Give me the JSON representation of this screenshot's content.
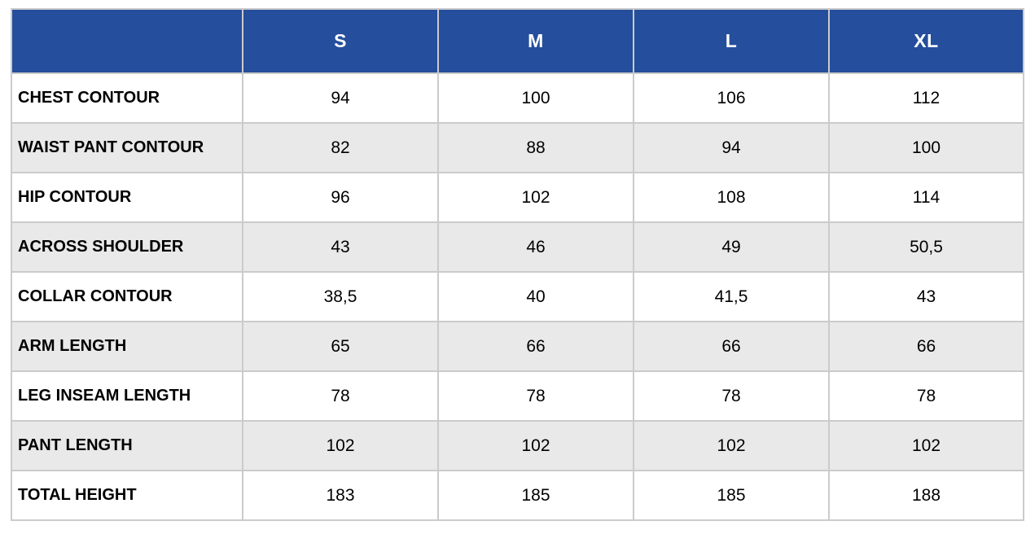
{
  "table": {
    "columns": [
      "",
      "S",
      "M",
      "L",
      "XL"
    ],
    "rows": [
      {
        "label": "CHEST CONTOUR",
        "values": [
          "94",
          "100",
          "106",
          "112"
        ]
      },
      {
        "label": "WAIST PANT CONTOUR",
        "values": [
          "82",
          "88",
          "94",
          "100"
        ]
      },
      {
        "label": "HIP CONTOUR",
        "values": [
          "96",
          "102",
          "108",
          "114"
        ]
      },
      {
        "label": "ACROSS SHOULDER",
        "values": [
          "43",
          "46",
          "49",
          "50,5"
        ]
      },
      {
        "label": "COLLAR CONTOUR",
        "values": [
          "38,5",
          "40",
          "41,5",
          "43"
        ]
      },
      {
        "label": "ARM LENGTH",
        "values": [
          "65",
          "66",
          "66",
          "66"
        ]
      },
      {
        "label": "LEG INSEAM LENGTH",
        "values": [
          "78",
          "78",
          "78",
          "78"
        ]
      },
      {
        "label": "PANT LENGTH",
        "values": [
          "102",
          "102",
          "102",
          "102"
        ]
      },
      {
        "label": "TOTAL HEIGHT",
        "values": [
          "183",
          "185",
          "185",
          "188"
        ]
      }
    ],
    "colors": {
      "header_bg": "#254e9c",
      "header_text": "#ffffff",
      "row_bg": "#ffffff",
      "row_alt_bg": "#e9e9e9",
      "border": "#cbcbcb",
      "cell_text": "#000000"
    }
  },
  "chart_data": {
    "type": "table",
    "columns": [
      "S",
      "M",
      "L",
      "XL"
    ],
    "rows": [
      {
        "label": "CHEST CONTOUR",
        "values": [
          94,
          100,
          106,
          112
        ]
      },
      {
        "label": "WAIST PANT CONTOUR",
        "values": [
          82,
          88,
          94,
          100
        ]
      },
      {
        "label": "HIP CONTOUR",
        "values": [
          96,
          102,
          108,
          114
        ]
      },
      {
        "label": "ACROSS SHOULDER",
        "values": [
          43,
          46,
          49,
          50.5
        ]
      },
      {
        "label": "COLLAR CONTOUR",
        "values": [
          38.5,
          40,
          41.5,
          43
        ]
      },
      {
        "label": "ARM LENGTH",
        "values": [
          65,
          66,
          66,
          66
        ]
      },
      {
        "label": "LEG INSEAM LENGTH",
        "values": [
          78,
          78,
          78,
          78
        ]
      },
      {
        "label": "PANT LENGTH",
        "values": [
          102,
          102,
          102,
          102
        ]
      },
      {
        "label": "TOTAL HEIGHT",
        "values": [
          183,
          185,
          185,
          188
        ]
      }
    ]
  }
}
